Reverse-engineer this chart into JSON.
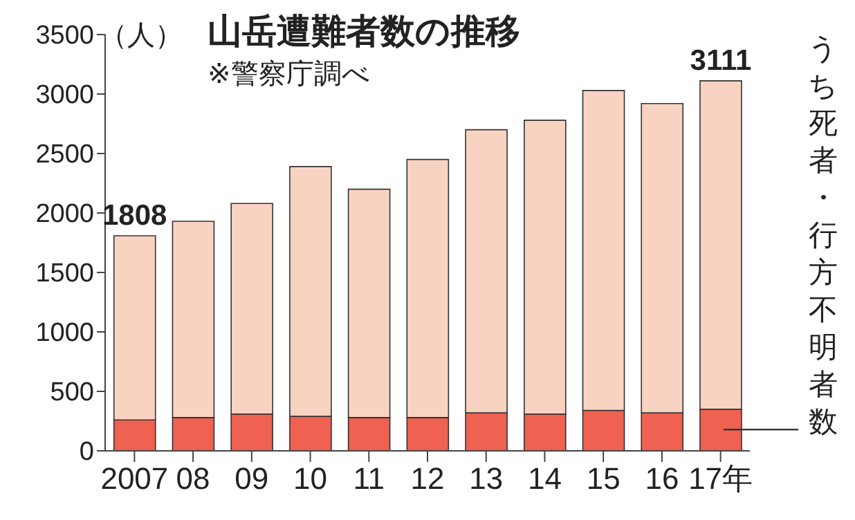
{
  "chart_data": {
    "type": "bar",
    "title": "山岳遭難者数の推移",
    "subtitle": "※警察庁調べ",
    "ylabel": "（人）",
    "categories": [
      "2007",
      "08",
      "09",
      "10",
      "11",
      "12",
      "13",
      "14",
      "15",
      "16",
      "17年"
    ],
    "stacked": true,
    "series": [
      {
        "name": "うち死者・行方不明者数",
        "color": "#ef6150",
        "values": [
          260,
          280,
          310,
          290,
          280,
          280,
          320,
          310,
          340,
          320,
          350
        ]
      },
      {
        "color": "#f9d3c2",
        "values": [
          1548,
          1650,
          1770,
          2100,
          1920,
          2170,
          2380,
          2470,
          2690,
          2600,
          2761
        ]
      }
    ],
    "totals": [
      "1808",
      null,
      null,
      null,
      null,
      null,
      null,
      null,
      null,
      null,
      "3111"
    ],
    "ylim": [
      0,
      3500
    ],
    "yticks": [
      0,
      500,
      1000,
      1500,
      2000,
      2500,
      3000,
      3500
    ]
  }
}
